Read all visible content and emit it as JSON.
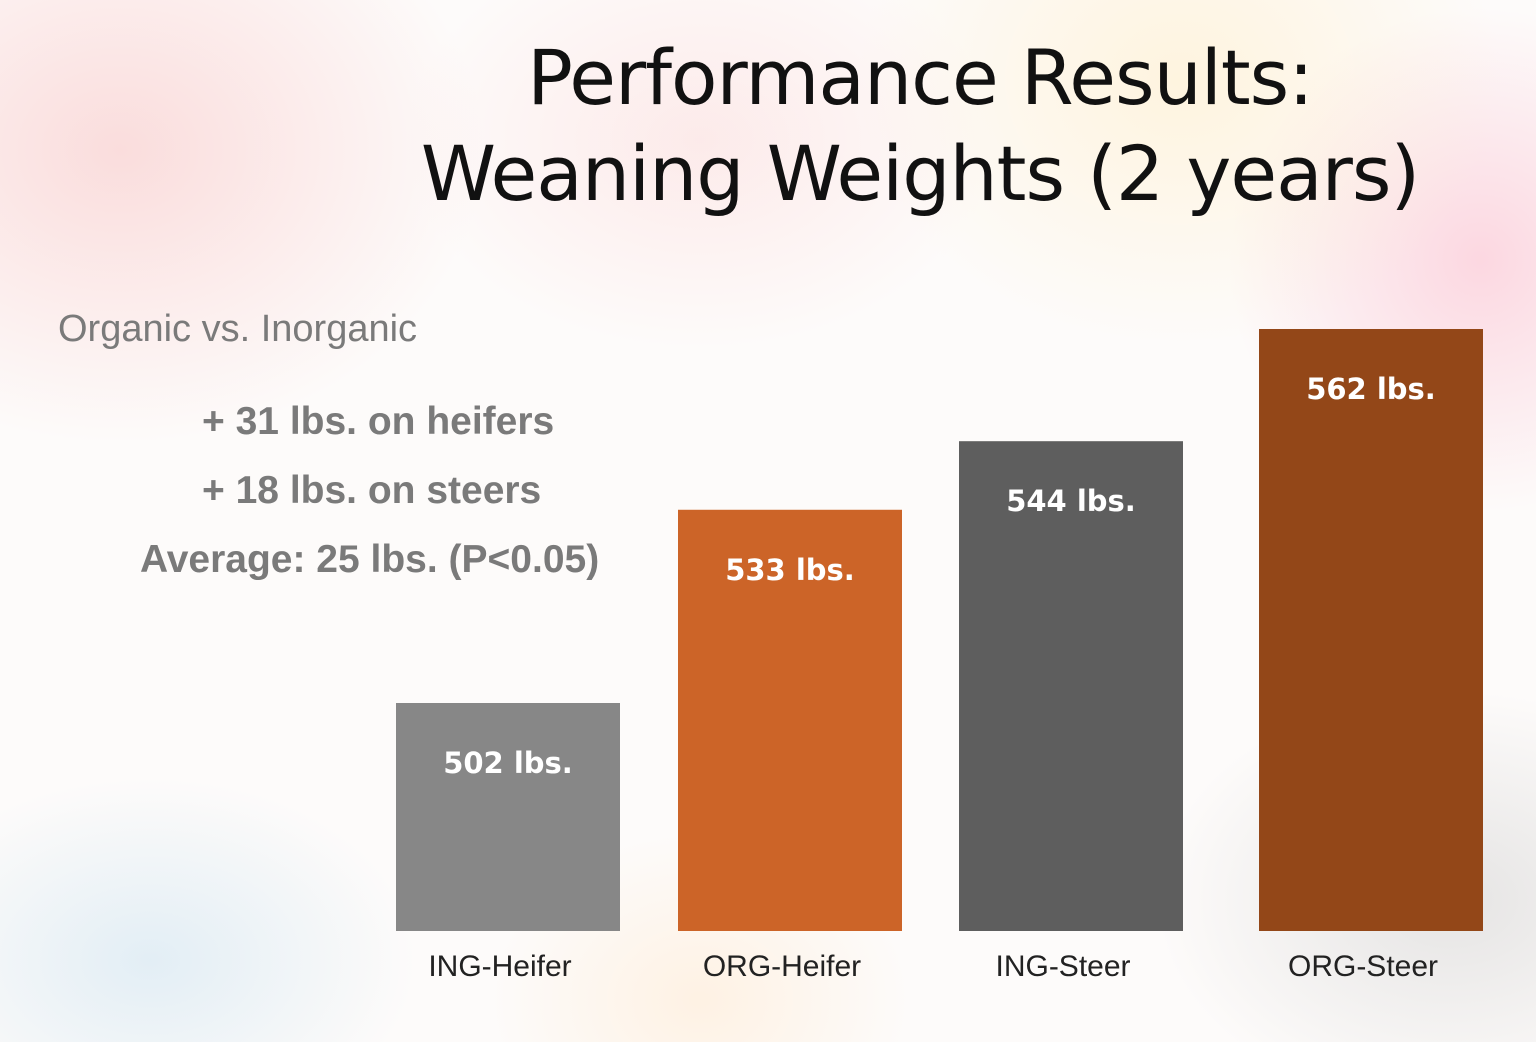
{
  "slide": {
    "title_line1": "Performance Results:",
    "title_line2": "Weaning Weights (2 years)",
    "subtitle": "Organic vs. Inorganic",
    "notes": [
      "+ 31 lbs. on heifers",
      "+ 18 lbs. on steers",
      "Average: 25 lbs. (P<0.05)"
    ]
  },
  "chart_data": {
    "type": "bar",
    "title": "",
    "xlabel": "",
    "ylabel": "",
    "categories": [
      "ING-Heifer",
      "ORG-Heifer",
      "ING-Steer",
      "ORG-Steer"
    ],
    "values": [
      502,
      533,
      544,
      562
    ],
    "data_labels": [
      "502 lbs.",
      "533 lbs.",
      "544 lbs.",
      "562 lbs."
    ],
    "colors": [
      "#878787",
      "#cc6428",
      "#5e5e5e",
      "#934718"
    ],
    "label_color": "#ffffff",
    "category_label_color": "#222222",
    "grid": false,
    "legend": "none"
  }
}
